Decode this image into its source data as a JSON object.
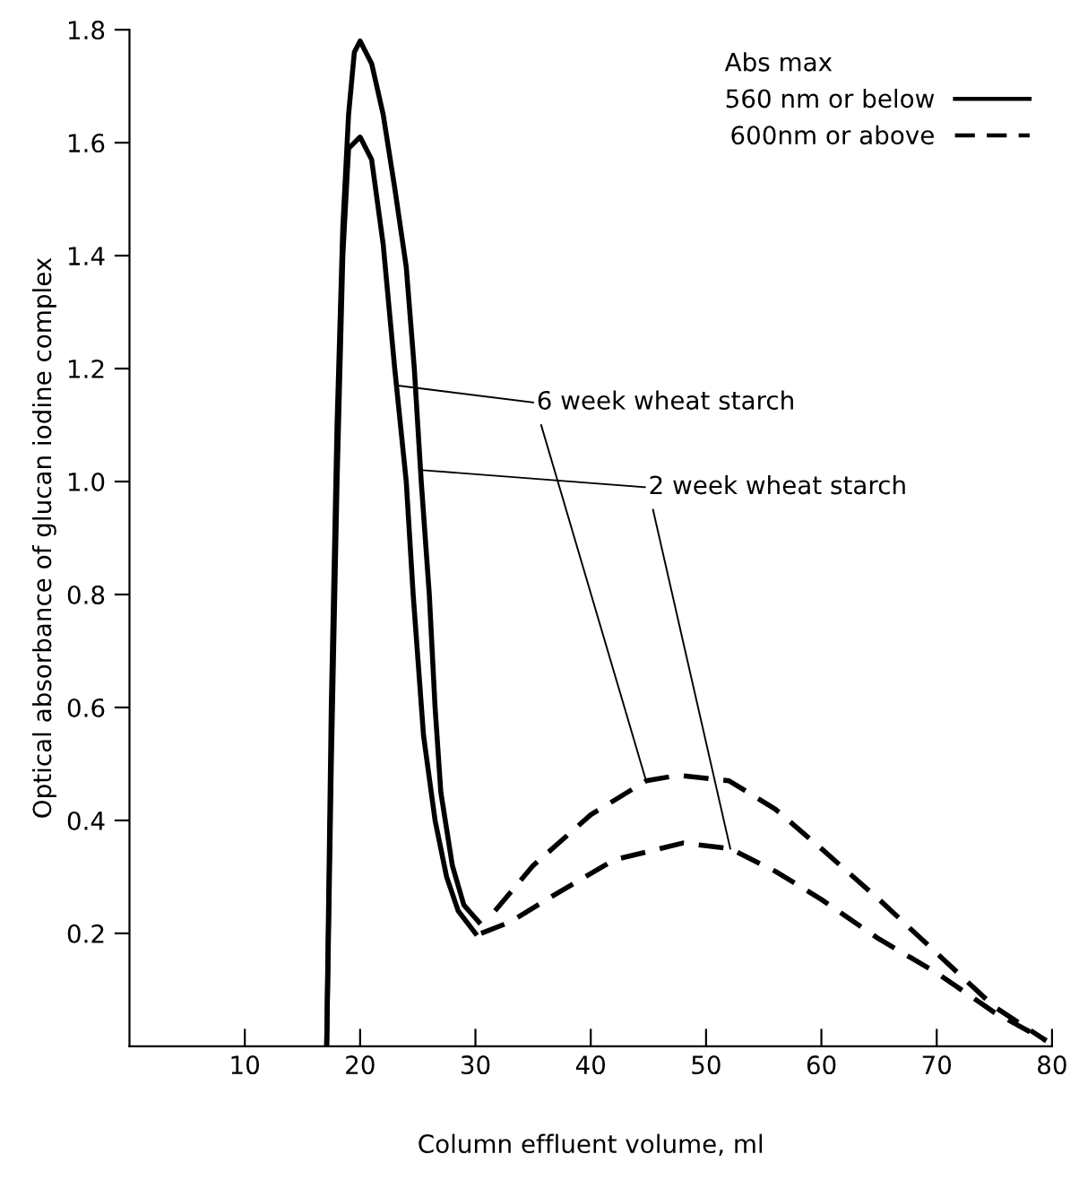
{
  "chart_data": {
    "type": "line",
    "xlabel": "Column effluent volume, ml",
    "ylabel": "Optical absorbance of glucan iodine complex",
    "legend_title": "Abs max",
    "legend": "top right",
    "xlim": [
      0,
      80
    ],
    "ylim": [
      0,
      1.8
    ],
    "xticks": [
      10,
      20,
      30,
      40,
      50,
      60,
      70,
      80
    ],
    "yticks": [
      0.2,
      0.4,
      0.6,
      0.8,
      {
        "value": 1.0,
        "label": "1.0"
      },
      1.2,
      1.4,
      1.6,
      1.8
    ],
    "grid": false,
    "series": [
      {
        "name": "560 nm or below",
        "color": "#000000",
        "line_style": "solid",
        "x": [
          17.1,
          17.5,
          18,
          18.5,
          19,
          19.5,
          20,
          21,
          22,
          23,
          24,
          24.7,
          25.3,
          26,
          26.5,
          27,
          28,
          29,
          30.3
        ],
        "values": [
          0,
          0.6,
          1.1,
          1.45,
          1.65,
          1.76,
          1.78,
          1.74,
          1.65,
          1.52,
          1.38,
          1.2,
          1.0,
          0.8,
          0.6,
          0.45,
          0.32,
          0.25,
          0.22
        ]
      },
      {
        "color": "#000000",
        "line_style": "solid",
        "x": [
          17.1,
          17.5,
          18,
          18.5,
          19,
          19.5,
          20,
          21,
          22,
          23,
          24,
          24.6,
          25.5,
          26.5,
          27.5,
          28.5,
          30
        ],
        "values": [
          0,
          0.5,
          1.0,
          1.4,
          1.59,
          1.6,
          1.61,
          1.57,
          1.42,
          1.2,
          1.0,
          0.8,
          0.55,
          0.4,
          0.3,
          0.24,
          0.2
        ]
      },
      {
        "name": "600nm or above",
        "color": "#000000",
        "line_style": "dashed",
        "x": [
          31.7,
          35,
          40,
          44.8,
          47.6,
          52,
          56,
          60,
          65,
          70,
          75,
          79.5
        ],
        "values": [
          0.24,
          0.32,
          0.41,
          0.47,
          0.48,
          0.47,
          0.42,
          0.35,
          0.26,
          0.165,
          0.07,
          0.01
        ]
      },
      {
        "color": "#000000",
        "line_style": "dashed",
        "x": [
          30.5,
          33,
          37,
          42,
          48,
          52.1,
          56,
          60,
          65,
          70,
          75,
          79.5
        ],
        "values": [
          0.2,
          0.22,
          0.27,
          0.33,
          0.36,
          0.35,
          0.31,
          0.26,
          0.19,
          0.13,
          0.06,
          0.01
        ]
      }
    ],
    "annotations": [
      {
        "text": "6 week wheat starch",
        "x": 23.2,
        "y": 1.17
      },
      {
        "text": "2 week wheat starch",
        "x": 25.5,
        "y": 1.02
      }
    ]
  }
}
